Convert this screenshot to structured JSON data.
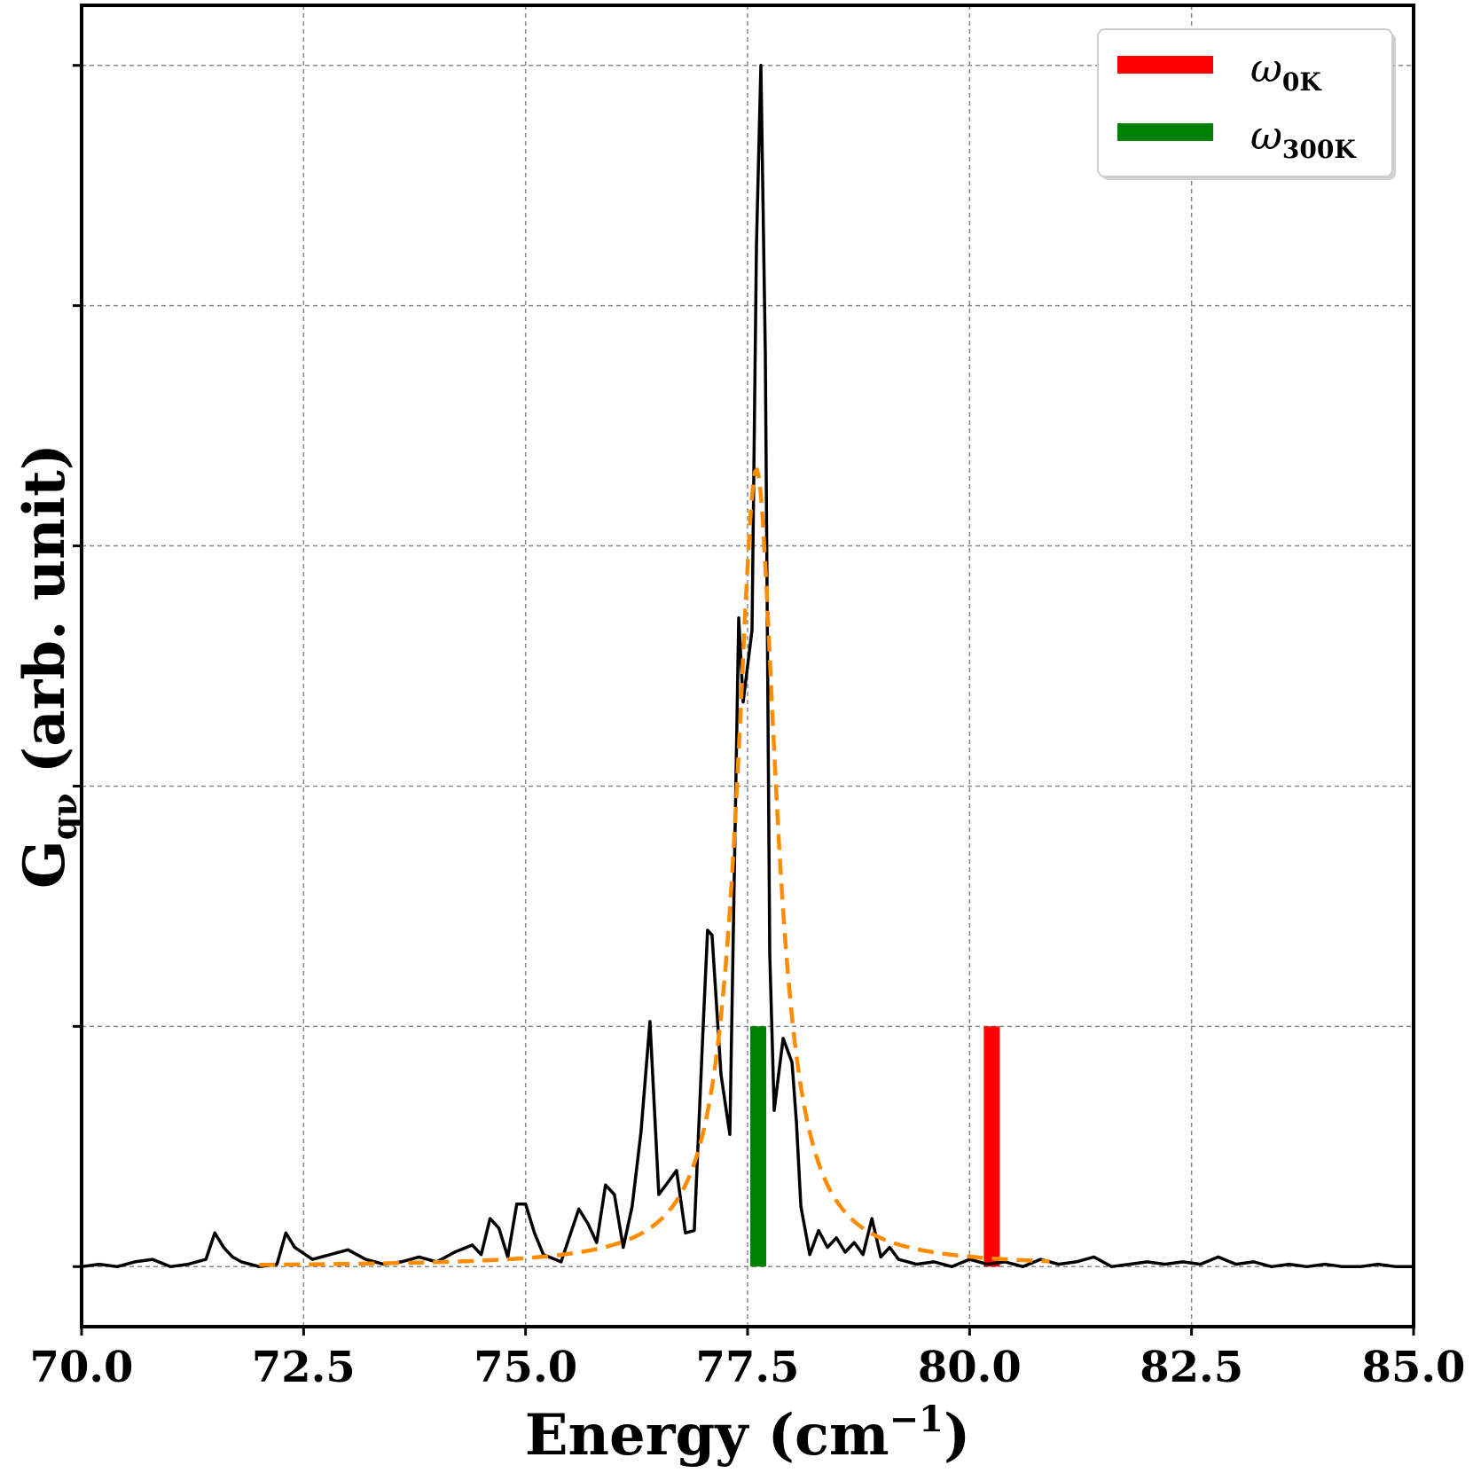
{
  "chart_data": {
    "type": "line",
    "xlabel": "Energy (cm",
    "xlabel_sup": "−1",
    "xlabel_close": ")",
    "ylabel": "G",
    "ylabel_sub": "qν",
    "ylabel_rest": " (arb. unit)",
    "xlim": [
      70.0,
      85.0
    ],
    "ylim": [
      -0.25,
      5.25
    ],
    "xticks": [
      70.0,
      72.5,
      75.0,
      77.5,
      80.0,
      82.5,
      85.0
    ],
    "xtick_labels": [
      "70.0",
      "72.5",
      "75.0",
      "77.5",
      "80.0",
      "82.5",
      "85.0"
    ],
    "yticks": [
      0,
      1,
      2,
      3,
      4,
      5
    ],
    "grid": true,
    "legend_position": "top-right",
    "series": [
      {
        "kind": "line",
        "color": "#000000",
        "x": [
          70.0,
          70.2,
          70.4,
          70.6,
          70.8,
          71.0,
          71.2,
          71.4,
          71.5,
          71.6,
          71.7,
          71.8,
          72.0,
          72.2,
          72.3,
          72.4,
          72.6,
          72.8,
          73.0,
          73.2,
          73.4,
          73.6,
          73.8,
          74.0,
          74.2,
          74.4,
          74.5,
          74.6,
          74.7,
          74.8,
          74.9,
          75.0,
          75.1,
          75.2,
          75.4,
          75.6,
          75.7,
          75.8,
          75.9,
          76.0,
          76.1,
          76.2,
          76.3,
          76.4,
          76.5,
          76.6,
          76.7,
          76.8,
          76.9,
          77.0,
          77.05,
          77.1,
          77.2,
          77.3,
          77.4,
          77.45,
          77.5,
          77.55,
          77.6,
          77.65,
          77.7,
          77.75,
          77.8,
          77.85,
          77.9,
          78.0,
          78.05,
          78.1,
          78.2,
          78.3,
          78.4,
          78.5,
          78.6,
          78.7,
          78.8,
          78.9,
          79.0,
          79.1,
          79.2,
          79.4,
          79.6,
          79.8,
          80.0,
          80.2,
          80.4,
          80.6,
          80.8,
          81.0,
          81.2,
          81.4,
          81.6,
          81.8,
          82.0,
          82.2,
          82.4,
          82.6,
          82.8,
          83.0,
          83.2,
          83.4,
          83.6,
          83.8,
          84.0,
          84.2,
          84.4,
          84.6,
          84.8,
          85.0
        ],
        "y": [
          0.0,
          0.01,
          0.0,
          0.02,
          0.03,
          0.0,
          0.01,
          0.03,
          0.14,
          0.08,
          0.04,
          0.02,
          0.0,
          0.01,
          0.14,
          0.08,
          0.03,
          0.05,
          0.07,
          0.03,
          0.01,
          0.02,
          0.04,
          0.02,
          0.06,
          0.09,
          0.05,
          0.2,
          0.16,
          0.04,
          0.26,
          0.26,
          0.14,
          0.05,
          0.02,
          0.24,
          0.18,
          0.1,
          0.34,
          0.3,
          0.08,
          0.25,
          0.56,
          1.02,
          0.3,
          0.35,
          0.4,
          0.14,
          0.15,
          1.0,
          1.4,
          1.38,
          0.8,
          0.55,
          2.7,
          2.35,
          2.5,
          2.65,
          4.25,
          5.0,
          3.8,
          1.3,
          0.65,
          0.8,
          0.95,
          0.85,
          0.6,
          0.25,
          0.05,
          0.15,
          0.08,
          0.12,
          0.06,
          0.1,
          0.05,
          0.2,
          0.04,
          0.08,
          0.03,
          0.01,
          0.02,
          0.0,
          0.03,
          0.01,
          0.02,
          0.0,
          0.03,
          0.01,
          0.02,
          0.04,
          0.0,
          0.01,
          0.02,
          0.01,
          0.02,
          0.01,
          0.04,
          0.01,
          0.02,
          0.0,
          0.01,
          0.0,
          0.01,
          0.0,
          0.0,
          0.01,
          0.0,
          0.0
        ]
      },
      {
        "kind": "lorentzian-fit",
        "color": "#ff8c00",
        "dashed": true,
        "x0": 77.6,
        "gamma": 0.27,
        "amplitude": 3.32,
        "xrange": [
          72.0,
          80.9
        ]
      }
    ],
    "markers": [
      {
        "name": "ω_0K",
        "x": 80.25,
        "y": 1.0,
        "color": "#ff0000"
      },
      {
        "name": "ω_300K",
        "x": 77.62,
        "y": 1.0,
        "color": "#008000"
      }
    ],
    "legend": [
      {
        "symbol": "ω",
        "sub": "0K",
        "color": "#ff0000"
      },
      {
        "symbol": "ω",
        "sub": "300K",
        "color": "#008000"
      }
    ]
  }
}
